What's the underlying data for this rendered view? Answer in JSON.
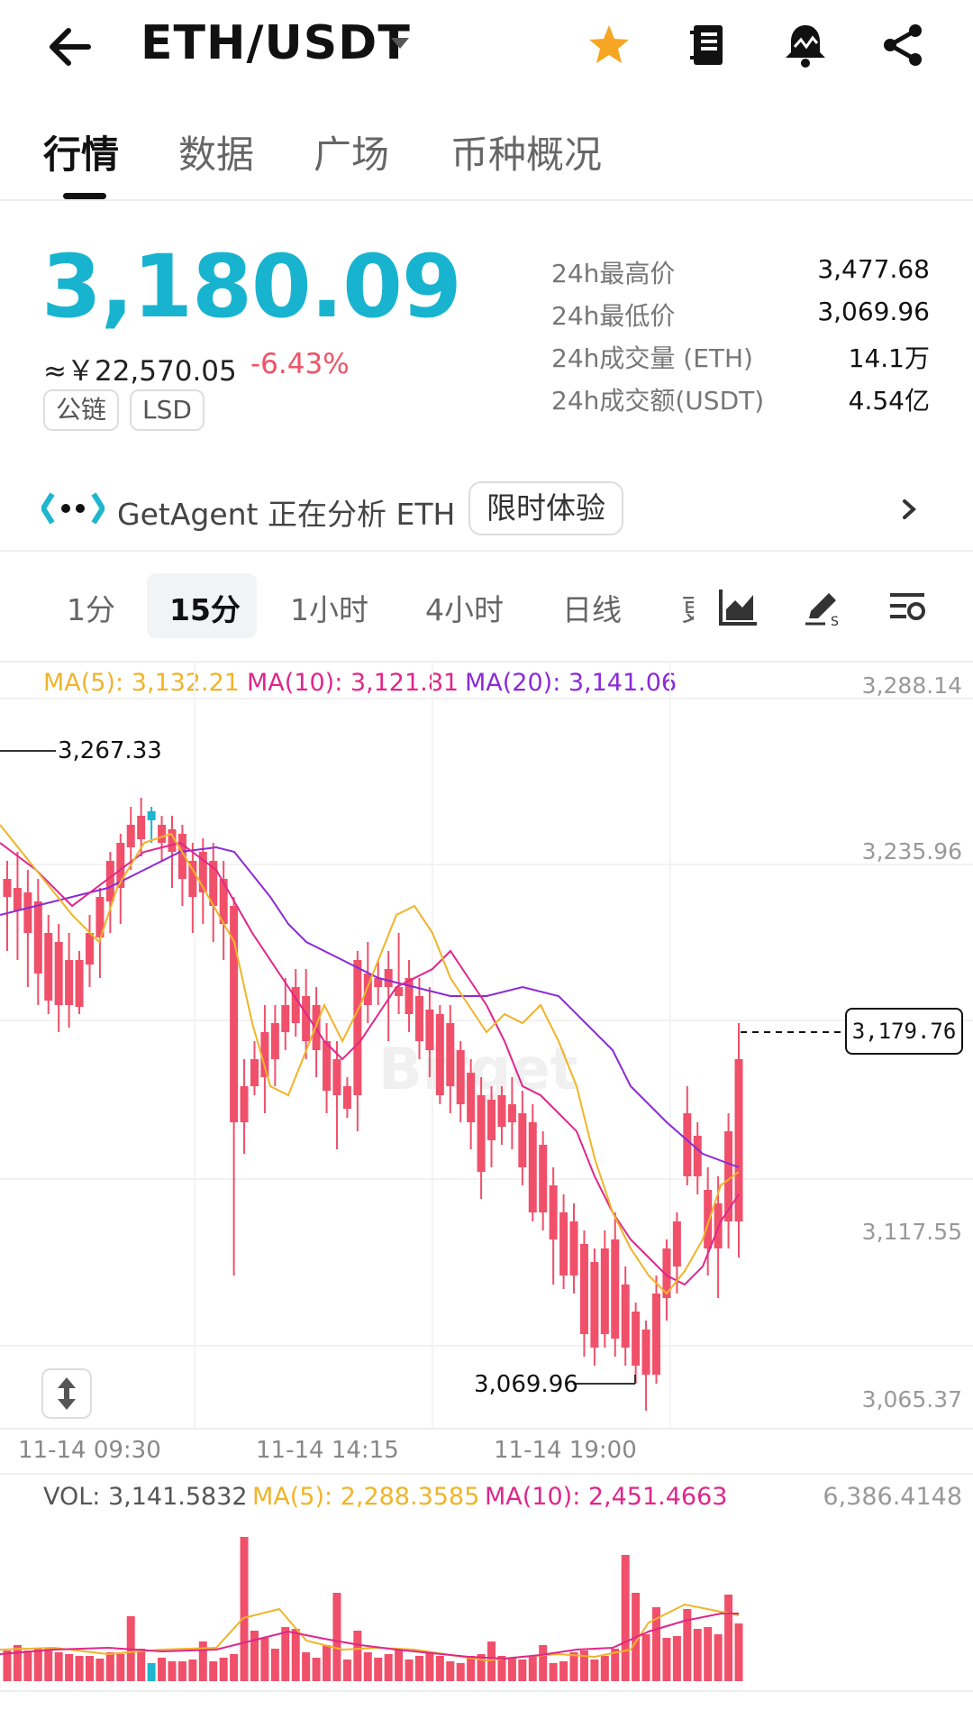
{
  "header": {
    "pair": "ETH/USDT"
  },
  "tabs": [
    "行情",
    "数据",
    "广场",
    "币种概况"
  ],
  "price": {
    "last": "3,180.09",
    "cny": "≈￥22,570.05",
    "change": "-6.43%",
    "tags": [
      "公链",
      "LSD"
    ]
  },
  "stats": [
    {
      "label": "24h最高价",
      "value": "3,477.68"
    },
    {
      "label": "24h最低价",
      "value": "3,069.96"
    },
    {
      "label": "24h成交量 (ETH)",
      "value": "14.1万"
    },
    {
      "label": "24h成交额(USDT)",
      "value": "4.54亿"
    }
  ],
  "agent": {
    "text": "GetAgent 正在分析 ETH",
    "button": "限时体验"
  },
  "intervals": [
    "1分",
    "15分",
    "1小时",
    "4小时",
    "日线",
    "更"
  ],
  "chart": {
    "ma5": "MA(5): 3,132.21",
    "ma10": "MA(10): 3,121.81",
    "ma20": "MA(20): 3,141.06",
    "y_labels": [
      "3,288.14",
      "3,235.96",
      "3,117.55",
      "3,065.37"
    ],
    "high_mark": "3,267.33",
    "low_mark": "3,069.96",
    "current": "3,179.76",
    "times": [
      "11-14 09:30",
      "11-14 14:15",
      "11-14 19:00"
    ],
    "watermark": "Bitget",
    "colors": {
      "up": "#1eb6cf",
      "down": "#f0506a",
      "ma5": "#f0b429",
      "ma10": "#e0268a",
      "ma20": "#8c2ad6"
    }
  },
  "volume": {
    "vol": "VOL: 3,141.5832",
    "ma5": "MA(5): 2,288.3585",
    "ma10": "MA(10): 2,451.4663",
    "max": "6,386.4148"
  }
}
